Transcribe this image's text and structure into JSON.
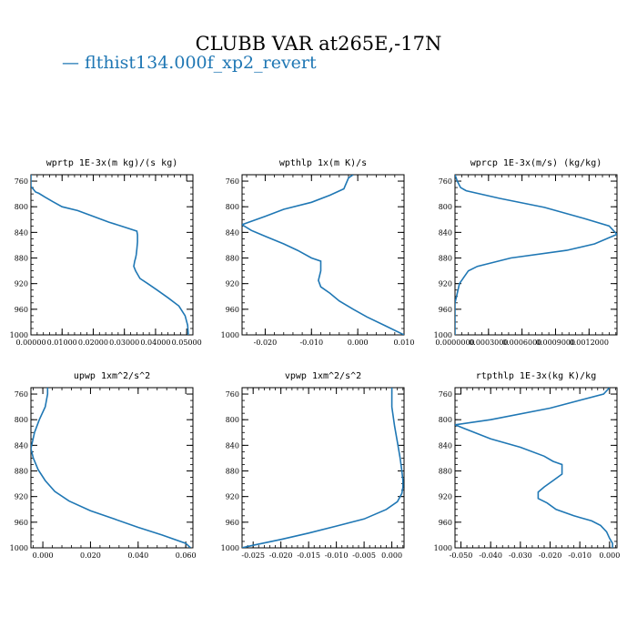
{
  "title": "CLUBB VAR at265E,-17N",
  "legend": {
    "label": "— flthist134.000f_xp2_revert",
    "color": "#1f77b4"
  },
  "chart_data": [
    {
      "type": "line",
      "title": "wprtp   1E-3x(m kg)/(s kg)",
      "xlim": [
        0,
        0.052
      ],
      "ylim": [
        1000,
        750
      ],
      "grid": false,
      "xticks": [
        0,
        0.01,
        0.02,
        0.03,
        0.04,
        0.05
      ],
      "xtick_labels": [
        "0.00000",
        "0.01000",
        "0.02000",
        "0.03000",
        "0.04000",
        "0.05000"
      ],
      "yticks": [
        760,
        800,
        840,
        880,
        920,
        960,
        1000
      ],
      "series": [
        {
          "values": [
            0.0,
            0.0,
            0.0,
            0.0,
            0.0,
            0.0,
            0.0015,
            0.0025,
            0.0045,
            0.007,
            0.01,
            0.015,
            0.02,
            0.025,
            0.0295,
            0.034,
            0.0342,
            0.0342,
            0.034,
            0.0338,
            0.0336,
            0.0333,
            0.033,
            0.0336,
            0.035,
            0.0375,
            0.0405,
            0.044,
            0.0475,
            0.0495,
            0.0503,
            0.0505
          ],
          "y": [
            750,
            752,
            755,
            758,
            760,
            768,
            777,
            779,
            785,
            792,
            800,
            806,
            815,
            824,
            831,
            838,
            844,
            855,
            866,
            875,
            880,
            885,
            893,
            900,
            912,
            920,
            930,
            942,
            955,
            970,
            985,
            1000
          ]
        }
      ]
    },
    {
      "type": "line",
      "title": "wpthlp   1x(m K)/s",
      "xlim": [
        -0.025,
        0.01
      ],
      "ylim": [
        1000,
        750
      ],
      "grid": false,
      "xticks": [
        -0.02,
        -0.01,
        0.0,
        0.01
      ],
      "xtick_labels": [
        "-0.020",
        "-0.010",
        "0.000",
        "0.010"
      ],
      "yticks": [
        760,
        800,
        840,
        880,
        920,
        960,
        1000
      ],
      "series": [
        {
          "values": [
            -0.001,
            -0.002,
            -0.003,
            -0.006,
            -0.01,
            -0.016,
            -0.02,
            -0.025,
            -0.023,
            -0.02,
            -0.016,
            -0.013,
            -0.01,
            -0.008,
            -0.008,
            -0.0085,
            -0.008,
            -0.006,
            -0.004,
            -0.001,
            0.002,
            0.006,
            0.01
          ],
          "y": [
            750,
            755,
            772,
            782,
            793,
            804,
            815,
            828,
            837,
            846,
            858,
            868,
            880,
            885,
            900,
            915,
            925,
            935,
            947,
            960,
            972,
            986,
            1000
          ]
        }
      ]
    },
    {
      "type": "line",
      "title": "wprcp   1E-3x(m/s) (kg/kg)",
      "xlim": [
        0,
        0.00145
      ],
      "ylim": [
        1000,
        750
      ],
      "grid": false,
      "xticks": [
        0,
        0.0003,
        0.0006,
        0.0009,
        0.0012
      ],
      "xtick_labels": [
        "0.0000000",
        "0.0003000",
        "0.0006000",
        "0.0009000",
        "0.0012000"
      ],
      "yticks": [
        760,
        800,
        840,
        880,
        920,
        960,
        1000
      ],
      "series": [
        {
          "values": [
            0,
            2e-05,
            5e-05,
            0.0001,
            0.0004,
            0.0008,
            0.00115,
            0.00138,
            0.00145,
            0.00125,
            0.001,
            0.0005,
            0.0002,
            0.00012,
            8e-05,
            4e-05,
            2e-05,
            0.0,
            0.0,
            0.0
          ],
          "y": [
            750,
            760,
            770,
            775,
            787,
            801,
            818,
            830,
            843,
            858,
            868,
            880,
            893,
            900,
            910,
            920,
            935,
            950,
            970,
            1000
          ]
        }
      ]
    },
    {
      "type": "line",
      "title": "upwp   1xm^2/s^2",
      "xlim": [
        -0.005,
        0.063
      ],
      "ylim": [
        1000,
        750
      ],
      "grid": false,
      "xticks": [
        0.0,
        0.02,
        0.04,
        0.06
      ],
      "xtick_labels": [
        "0.000",
        "0.020",
        "0.040",
        "0.060"
      ],
      "yticks": [
        760,
        800,
        840,
        880,
        920,
        960,
        1000
      ],
      "series": [
        {
          "values": [
            0.002,
            0.002,
            0.0015,
            0.001,
            -0.0015,
            -0.0035,
            -0.005,
            -0.004,
            -0.002,
            0.001,
            0.005,
            0.011,
            0.02,
            0.03,
            0.04,
            0.05,
            0.06,
            0.062
          ],
          "y": [
            750,
            760,
            770,
            780,
            800,
            820,
            845,
            860,
            878,
            895,
            912,
            927,
            942,
            955,
            968,
            980,
            993,
            1000
          ]
        }
      ]
    },
    {
      "type": "line",
      "title": "vpwp   1xm^2/s^2",
      "xlim": [
        -0.027,
        0.0022
      ],
      "ylim": [
        1000,
        750
      ],
      "grid": false,
      "xticks": [
        -0.025,
        -0.02,
        -0.015,
        -0.01,
        -0.005,
        0.0
      ],
      "xtick_labels": [
        "-0.025",
        "-0.020",
        "-0.015",
        "-0.010",
        "-0.005",
        "0.000"
      ],
      "yticks": [
        760,
        800,
        840,
        880,
        920,
        960,
        1000
      ],
      "series": [
        {
          "values": [
            0.0,
            0.0,
            0.0,
            0.0005,
            0.001,
            0.0015,
            0.0018,
            0.002,
            0.002,
            0.0018,
            0.001,
            -0.001,
            -0.005,
            -0.01,
            -0.015,
            -0.02,
            -0.025,
            -0.027
          ],
          "y": [
            750,
            760,
            780,
            810,
            835,
            860,
            880,
            895,
            905,
            915,
            928,
            940,
            955,
            966,
            977,
            987,
            996,
            1000
          ]
        }
      ]
    },
    {
      "type": "line",
      "title": "rtpthlp   1E-3x(kg K)/kg",
      "xlim": [
        -0.052,
        0.0025
      ],
      "ylim": [
        1000,
        750
      ],
      "grid": false,
      "xticks": [
        -0.05,
        -0.04,
        -0.03,
        -0.02,
        -0.01,
        0.0
      ],
      "xtick_labels": [
        "-0.050",
        "-0.040",
        "-0.030",
        "-0.020",
        "-0.010",
        "0.000"
      ],
      "yticks": [
        760,
        800,
        840,
        880,
        920,
        960,
        1000
      ],
      "series": [
        {
          "values": [
            0.0,
            -0.002,
            -0.02,
            -0.04,
            -0.052,
            -0.04,
            -0.03,
            -0.022,
            -0.019,
            -0.016,
            -0.016,
            -0.019,
            -0.022,
            -0.024,
            -0.024,
            -0.021,
            -0.018,
            -0.012,
            -0.006,
            -0.003,
            -0.001,
            0.0,
            0.001,
            0.001
          ],
          "y": [
            750,
            760,
            782,
            800,
            808,
            830,
            843,
            857,
            865,
            870,
            885,
            895,
            905,
            913,
            923,
            930,
            940,
            950,
            958,
            965,
            975,
            985,
            993,
            1000
          ]
        }
      ]
    }
  ]
}
